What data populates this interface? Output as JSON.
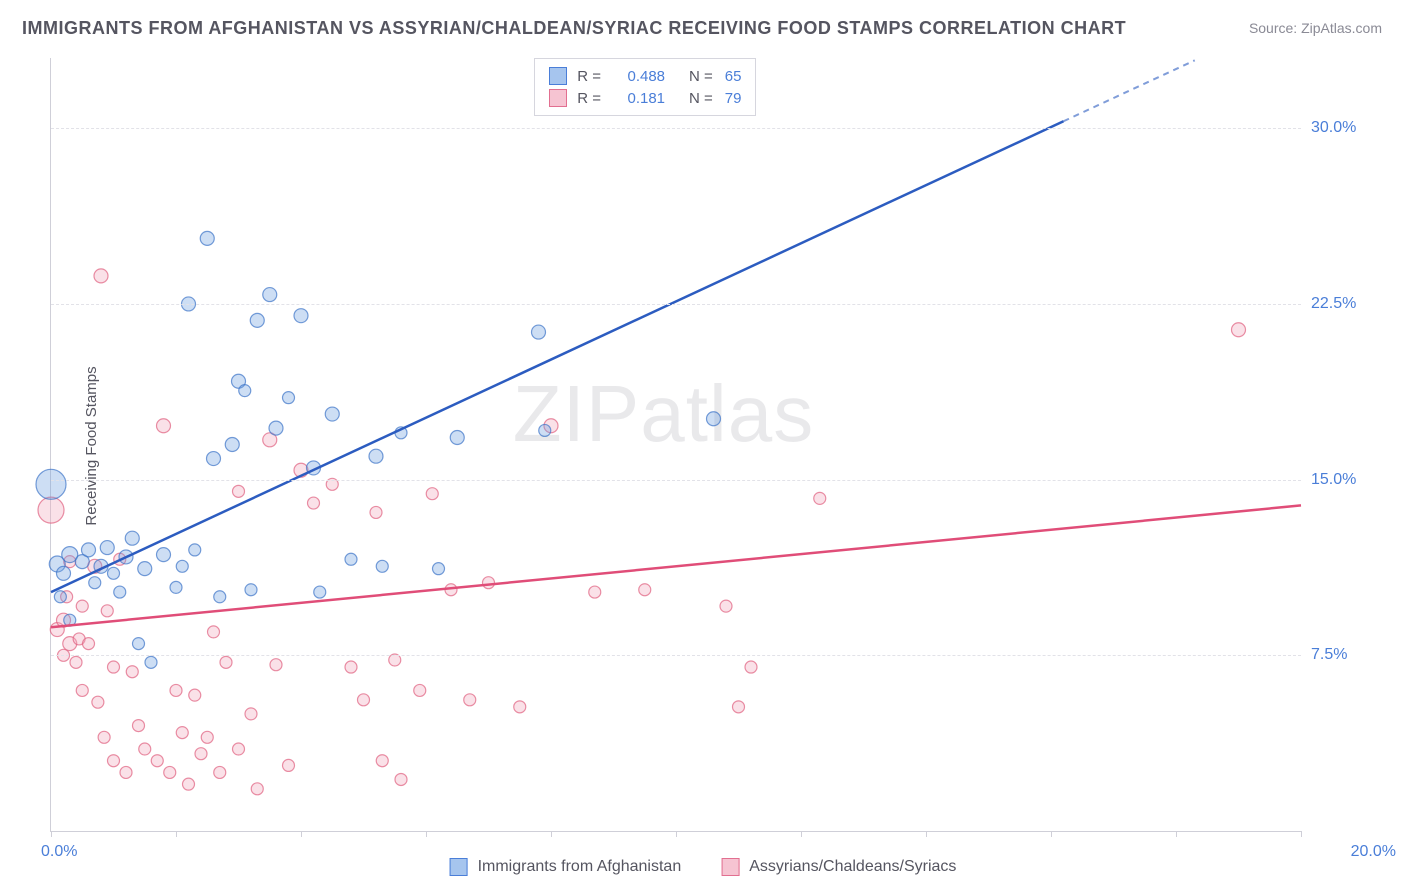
{
  "title": "IMMIGRANTS FROM AFGHANISTAN VS ASSYRIAN/CHALDEAN/SYRIAC RECEIVING FOOD STAMPS CORRELATION CHART",
  "source": "Source: ZipAtlas.com",
  "ylabel": "Receiving Food Stamps",
  "watermark_a": "ZIP",
  "watermark_b": "atlas",
  "xlim": [
    0,
    20
  ],
  "ylim": [
    0,
    33
  ],
  "ytick_values": [
    7.5,
    15.0,
    22.5,
    30.0
  ],
  "ytick_labels": [
    "7.5%",
    "15.0%",
    "22.5%",
    "30.0%"
  ],
  "xtick_marks": [
    0,
    2,
    4,
    6,
    8,
    10,
    12,
    14,
    16,
    18,
    20
  ],
  "xtick_left": "0.0%",
  "xtick_right": "20.0%",
  "series": [
    {
      "id": "blue",
      "label": "Immigrants from Afghanistan",
      "fill": "#6fa0e0",
      "stroke": "#3c74c8",
      "line_color": "#2c5cc0",
      "R": "0.488",
      "N": "65",
      "trend": {
        "x1": 0,
        "y1": 10.2,
        "x2": 16.2,
        "y2": 30.3
      },
      "trend_dash": {
        "x1": 16.2,
        "y1": 30.3,
        "x2": 18.3,
        "y2": 32.9
      },
      "points": [
        {
          "x": 0.0,
          "y": 14.8,
          "r": 15
        },
        {
          "x": 0.1,
          "y": 11.4,
          "r": 8
        },
        {
          "x": 0.2,
          "y": 11.0,
          "r": 7
        },
        {
          "x": 0.3,
          "y": 11.8,
          "r": 8
        },
        {
          "x": 0.15,
          "y": 10.0,
          "r": 6
        },
        {
          "x": 0.3,
          "y": 9.0,
          "r": 6
        },
        {
          "x": 0.5,
          "y": 11.5,
          "r": 7
        },
        {
          "x": 0.6,
          "y": 12.0,
          "r": 7
        },
        {
          "x": 0.7,
          "y": 10.6,
          "r": 6
        },
        {
          "x": 0.8,
          "y": 11.3,
          "r": 7
        },
        {
          "x": 0.9,
          "y": 12.1,
          "r": 7
        },
        {
          "x": 1.0,
          "y": 11.0,
          "r": 6
        },
        {
          "x": 1.1,
          "y": 10.2,
          "r": 6
        },
        {
          "x": 1.2,
          "y": 11.7,
          "r": 7
        },
        {
          "x": 1.3,
          "y": 12.5,
          "r": 7
        },
        {
          "x": 1.4,
          "y": 8.0,
          "r": 6
        },
        {
          "x": 1.5,
          "y": 11.2,
          "r": 7
        },
        {
          "x": 1.6,
          "y": 7.2,
          "r": 6
        },
        {
          "x": 1.8,
          "y": 11.8,
          "r": 7
        },
        {
          "x": 2.0,
          "y": 10.4,
          "r": 6
        },
        {
          "x": 2.1,
          "y": 11.3,
          "r": 6
        },
        {
          "x": 2.2,
          "y": 22.5,
          "r": 7
        },
        {
          "x": 2.3,
          "y": 12.0,
          "r": 6
        },
        {
          "x": 2.5,
          "y": 25.3,
          "r": 7
        },
        {
          "x": 2.6,
          "y": 15.9,
          "r": 7
        },
        {
          "x": 2.7,
          "y": 10.0,
          "r": 6
        },
        {
          "x": 2.9,
          "y": 16.5,
          "r": 7
        },
        {
          "x": 3.0,
          "y": 19.2,
          "r": 7
        },
        {
          "x": 3.1,
          "y": 18.8,
          "r": 6
        },
        {
          "x": 3.2,
          "y": 10.3,
          "r": 6
        },
        {
          "x": 3.3,
          "y": 21.8,
          "r": 7
        },
        {
          "x": 3.5,
          "y": 22.9,
          "r": 7
        },
        {
          "x": 3.6,
          "y": 17.2,
          "r": 7
        },
        {
          "x": 3.8,
          "y": 18.5,
          "r": 6
        },
        {
          "x": 4.0,
          "y": 22.0,
          "r": 7
        },
        {
          "x": 4.2,
          "y": 15.5,
          "r": 7
        },
        {
          "x": 4.3,
          "y": 10.2,
          "r": 6
        },
        {
          "x": 4.5,
          "y": 17.8,
          "r": 7
        },
        {
          "x": 4.8,
          "y": 11.6,
          "r": 6
        },
        {
          "x": 5.2,
          "y": 16.0,
          "r": 7
        },
        {
          "x": 5.3,
          "y": 11.3,
          "r": 6
        },
        {
          "x": 5.6,
          "y": 17.0,
          "r": 6
        },
        {
          "x": 6.2,
          "y": 11.2,
          "r": 6
        },
        {
          "x": 6.5,
          "y": 16.8,
          "r": 7
        },
        {
          "x": 7.8,
          "y": 21.3,
          "r": 7
        },
        {
          "x": 7.9,
          "y": 17.1,
          "r": 6
        },
        {
          "x": 10.6,
          "y": 17.6,
          "r": 7
        }
      ]
    },
    {
      "id": "pink",
      "label": "Assyrians/Chaldeans/Syriacs",
      "fill": "#f2a8bd",
      "stroke": "#e0607f",
      "line_color": "#e04d78",
      "R": "0.181",
      "N": "79",
      "trend": {
        "x1": 0,
        "y1": 8.7,
        "x2": 20,
        "y2": 13.9
      },
      "points": [
        {
          "x": 0.0,
          "y": 13.7,
          "r": 13
        },
        {
          "x": 0.1,
          "y": 8.6,
          "r": 7
        },
        {
          "x": 0.2,
          "y": 9.0,
          "r": 7
        },
        {
          "x": 0.2,
          "y": 7.5,
          "r": 6
        },
        {
          "x": 0.25,
          "y": 10.0,
          "r": 6
        },
        {
          "x": 0.3,
          "y": 8.0,
          "r": 7
        },
        {
          "x": 0.3,
          "y": 11.5,
          "r": 6
        },
        {
          "x": 0.4,
          "y": 7.2,
          "r": 6
        },
        {
          "x": 0.45,
          "y": 8.2,
          "r": 6
        },
        {
          "x": 0.5,
          "y": 9.6,
          "r": 6
        },
        {
          "x": 0.5,
          "y": 6.0,
          "r": 6
        },
        {
          "x": 0.6,
          "y": 8.0,
          "r": 6
        },
        {
          "x": 0.7,
          "y": 11.3,
          "r": 7
        },
        {
          "x": 0.75,
          "y": 5.5,
          "r": 6
        },
        {
          "x": 0.8,
          "y": 23.7,
          "r": 7
        },
        {
          "x": 0.85,
          "y": 4.0,
          "r": 6
        },
        {
          "x": 0.9,
          "y": 9.4,
          "r": 6
        },
        {
          "x": 1.0,
          "y": 7.0,
          "r": 6
        },
        {
          "x": 1.0,
          "y": 3.0,
          "r": 6
        },
        {
          "x": 1.1,
          "y": 11.6,
          "r": 6
        },
        {
          "x": 1.2,
          "y": 2.5,
          "r": 6
        },
        {
          "x": 1.3,
          "y": 6.8,
          "r": 6
        },
        {
          "x": 1.4,
          "y": 4.5,
          "r": 6
        },
        {
          "x": 1.5,
          "y": 3.5,
          "r": 6
        },
        {
          "x": 1.7,
          "y": 3.0,
          "r": 6
        },
        {
          "x": 1.8,
          "y": 17.3,
          "r": 7
        },
        {
          "x": 1.9,
          "y": 2.5,
          "r": 6
        },
        {
          "x": 2.0,
          "y": 6.0,
          "r": 6
        },
        {
          "x": 2.1,
          "y": 4.2,
          "r": 6
        },
        {
          "x": 2.2,
          "y": 2.0,
          "r": 6
        },
        {
          "x": 2.3,
          "y": 5.8,
          "r": 6
        },
        {
          "x": 2.4,
          "y": 3.3,
          "r": 6
        },
        {
          "x": 2.5,
          "y": 4.0,
          "r": 6
        },
        {
          "x": 2.6,
          "y": 8.5,
          "r": 6
        },
        {
          "x": 2.7,
          "y": 2.5,
          "r": 6
        },
        {
          "x": 2.8,
          "y": 7.2,
          "r": 6
        },
        {
          "x": 3.0,
          "y": 3.5,
          "r": 6
        },
        {
          "x": 3.0,
          "y": 14.5,
          "r": 6
        },
        {
          "x": 3.2,
          "y": 5.0,
          "r": 6
        },
        {
          "x": 3.3,
          "y": 1.8,
          "r": 6
        },
        {
          "x": 3.5,
          "y": 16.7,
          "r": 7
        },
        {
          "x": 3.6,
          "y": 7.1,
          "r": 6
        },
        {
          "x": 3.8,
          "y": 2.8,
          "r": 6
        },
        {
          "x": 4.0,
          "y": 15.4,
          "r": 7
        },
        {
          "x": 4.2,
          "y": 14.0,
          "r": 6
        },
        {
          "x": 4.5,
          "y": 14.8,
          "r": 6
        },
        {
          "x": 4.8,
          "y": 7.0,
          "r": 6
        },
        {
          "x": 5.0,
          "y": 5.6,
          "r": 6
        },
        {
          "x": 5.2,
          "y": 13.6,
          "r": 6
        },
        {
          "x": 5.3,
          "y": 3.0,
          "r": 6
        },
        {
          "x": 5.5,
          "y": 7.3,
          "r": 6
        },
        {
          "x": 5.6,
          "y": 2.2,
          "r": 6
        },
        {
          "x": 5.9,
          "y": 6.0,
          "r": 6
        },
        {
          "x": 6.1,
          "y": 14.4,
          "r": 6
        },
        {
          "x": 6.4,
          "y": 10.3,
          "r": 6
        },
        {
          "x": 6.7,
          "y": 5.6,
          "r": 6
        },
        {
          "x": 7.0,
          "y": 10.6,
          "r": 6
        },
        {
          "x": 7.5,
          "y": 5.3,
          "r": 6
        },
        {
          "x": 8.0,
          "y": 17.3,
          "r": 7
        },
        {
          "x": 8.7,
          "y": 10.2,
          "r": 6
        },
        {
          "x": 9.5,
          "y": 10.3,
          "r": 6
        },
        {
          "x": 10.8,
          "y": 9.6,
          "r": 6
        },
        {
          "x": 11.0,
          "y": 5.3,
          "r": 6
        },
        {
          "x": 11.2,
          "y": 7.0,
          "r": 6
        },
        {
          "x": 12.3,
          "y": 14.2,
          "r": 6
        },
        {
          "x": 19.0,
          "y": 21.4,
          "r": 7
        }
      ]
    }
  ],
  "bottom_legend": [
    {
      "label": "Immigrants from Afghanistan",
      "fill": "#a6c5ee",
      "stroke": "#4a7ed8"
    },
    {
      "label": "Assyrians/Chaldeans/Syriacs",
      "fill": "#f6c4d2",
      "stroke": "#e26f90"
    }
  ],
  "stats_legend": [
    {
      "fill": "#a6c5ee",
      "stroke": "#4a7ed8",
      "R": "0.488",
      "N": "65"
    },
    {
      "fill": "#f6c4d2",
      "stroke": "#e26f90",
      "R": "0.181",
      "N": "79"
    }
  ]
}
